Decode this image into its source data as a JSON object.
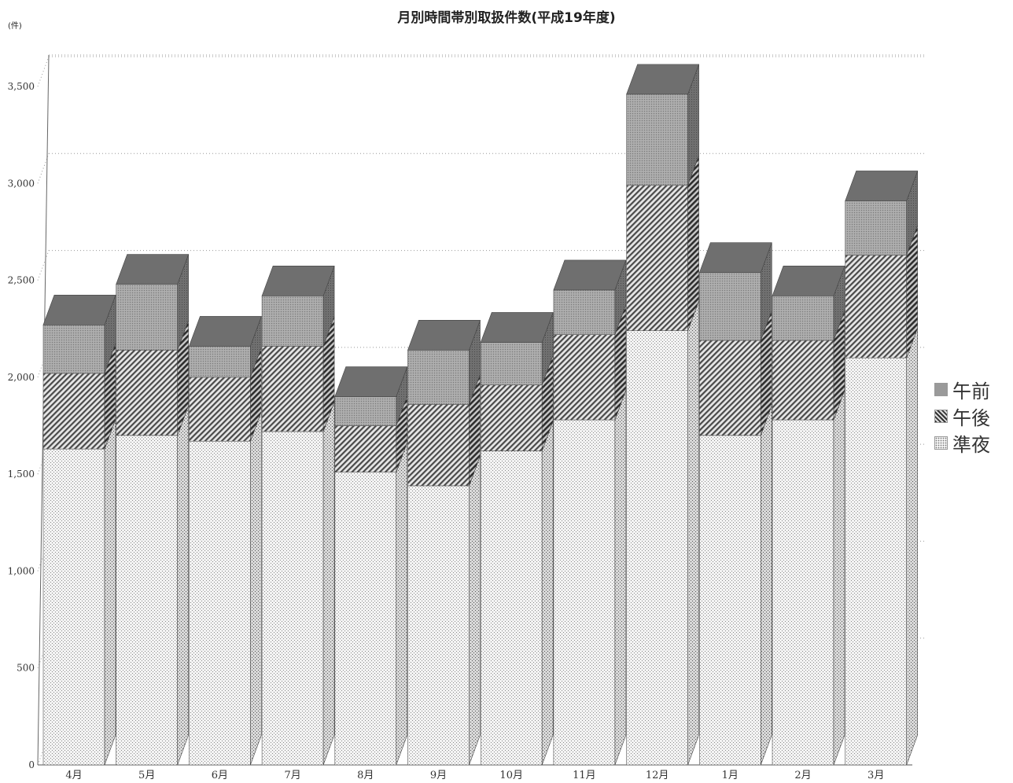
{
  "chart_data": {
    "type": "bar",
    "stacked": true,
    "three_d": true,
    "title": "月別時間帯別取扱件数(平成19年度)",
    "y_unit": "(件)",
    "categories": [
      "4月",
      "5月",
      "6月",
      "7月",
      "8月",
      "9月",
      "10月",
      "11月",
      "12月",
      "1月",
      "2月",
      "3月"
    ],
    "series": [
      {
        "name": "準夜",
        "values": [
          1630,
          1700,
          1670,
          1720,
          1510,
          1440,
          1620,
          1780,
          2240,
          1700,
          1780,
          2100
        ]
      },
      {
        "name": "午後",
        "values": [
          390,
          440,
          330,
          440,
          240,
          420,
          340,
          440,
          750,
          490,
          410,
          530
        ]
      },
      {
        "name": "午前",
        "values": [
          250,
          340,
          160,
          260,
          150,
          280,
          220,
          230,
          470,
          350,
          230,
          280
        ]
      }
    ],
    "ylim": [
      0,
      3500
    ],
    "yticks": [
      "0",
      "500",
      "1,000",
      "1,500",
      "2,000",
      "2,500",
      "3,000",
      "3,500"
    ],
    "grid": true,
    "legend_position": "right",
    "colors": {
      "午前": "#a3a3a3",
      "午後": "#8a8a8a",
      "準夜": "#e9e9e9"
    }
  },
  "legend": {
    "items": [
      {
        "label": "午前",
        "icon": "gray-square"
      },
      {
        "label": "午後",
        "icon": "hatched-square"
      },
      {
        "label": "準夜",
        "icon": "dotted-square"
      }
    ]
  }
}
